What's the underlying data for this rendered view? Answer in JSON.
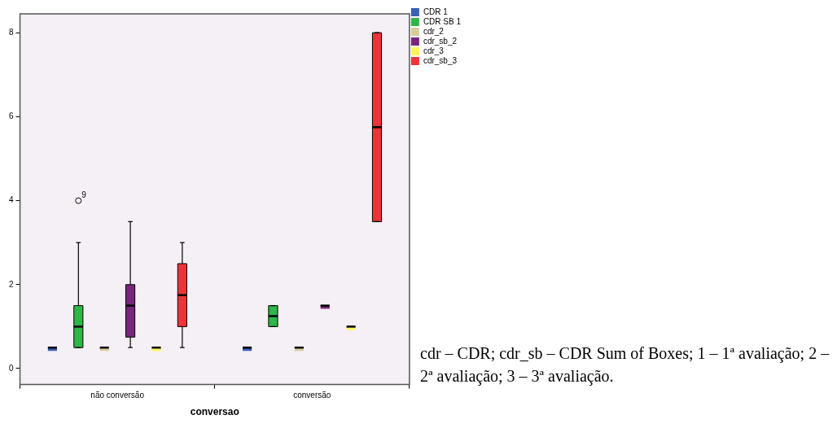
{
  "chart_data": {
    "type": "box",
    "xlabel": "conversao",
    "categories": [
      "não conversão",
      "conversão"
    ],
    "ylim": [
      -0.38,
      8.45
    ],
    "yticks": [
      0,
      2,
      4,
      6,
      8
    ],
    "grid": false,
    "legend": "top right",
    "annotations": [
      "9",
      "cdr – CDR; cdr_sb – CDR Sum of Boxes; 1 – 1ª avaliação; 2 – 2ª avaliação; 3 – 3ª avaliação."
    ],
    "series": [
      {
        "name": "CDR 1",
        "color": "#3b5fb5",
        "boxes": [
          {
            "low": 0.5,
            "q1": 0.5,
            "median": 0.5,
            "q3": 0.5,
            "high": 0.5
          },
          {
            "low": 0.5,
            "q1": 0.5,
            "median": 0.5,
            "q3": 0.5,
            "high": 0.5
          }
        ]
      },
      {
        "name": "CDR SB 1",
        "color": "#2fb548",
        "boxes": [
          {
            "low": 0.5,
            "q1": 0.5,
            "median": 1,
            "q3": 1.5,
            "high": 3,
            "outliers": [
              4
            ]
          },
          {
            "low": 1,
            "q1": 1,
            "median": 1.25,
            "q3": 1.5,
            "high": 1.5
          }
        ]
      },
      {
        "name": "cdr_2",
        "color": "#d8cc9a",
        "boxes": [
          {
            "low": 0.5,
            "q1": 0.5,
            "median": 0.5,
            "q3": 0.5,
            "high": 0.5
          },
          {
            "low": 0.5,
            "q1": 0.5,
            "median": 0.5,
            "q3": 0.5,
            "high": 0.5
          }
        ]
      },
      {
        "name": "cdr_sb_2",
        "color": "#78267c",
        "boxes": [
          {
            "low": 0.5,
            "q1": 0.75,
            "median": 1.5,
            "q3": 2,
            "high": 3.5
          },
          {
            "low": 1.5,
            "q1": 1.5,
            "median": 1.5,
            "q3": 1.5,
            "high": 1.5
          }
        ]
      },
      {
        "name": "cdr_3",
        "color": "#fff35a",
        "boxes": [
          {
            "low": 0.5,
            "q1": 0.5,
            "median": 0.5,
            "q3": 0.5,
            "high": 0.5
          },
          {
            "low": 1,
            "q1": 1,
            "median": 1,
            "q3": 1,
            "high": 1
          }
        ]
      },
      {
        "name": "cdr_sb_3",
        "color": "#ee3338",
        "boxes": [
          {
            "low": 0.5,
            "q1": 1,
            "median": 1.75,
            "q3": 2.5,
            "high": 3
          },
          {
            "low": 3.5,
            "q1": 3.5,
            "median": 5.75,
            "q3": 8,
            "high": 8
          }
        ]
      }
    ]
  }
}
